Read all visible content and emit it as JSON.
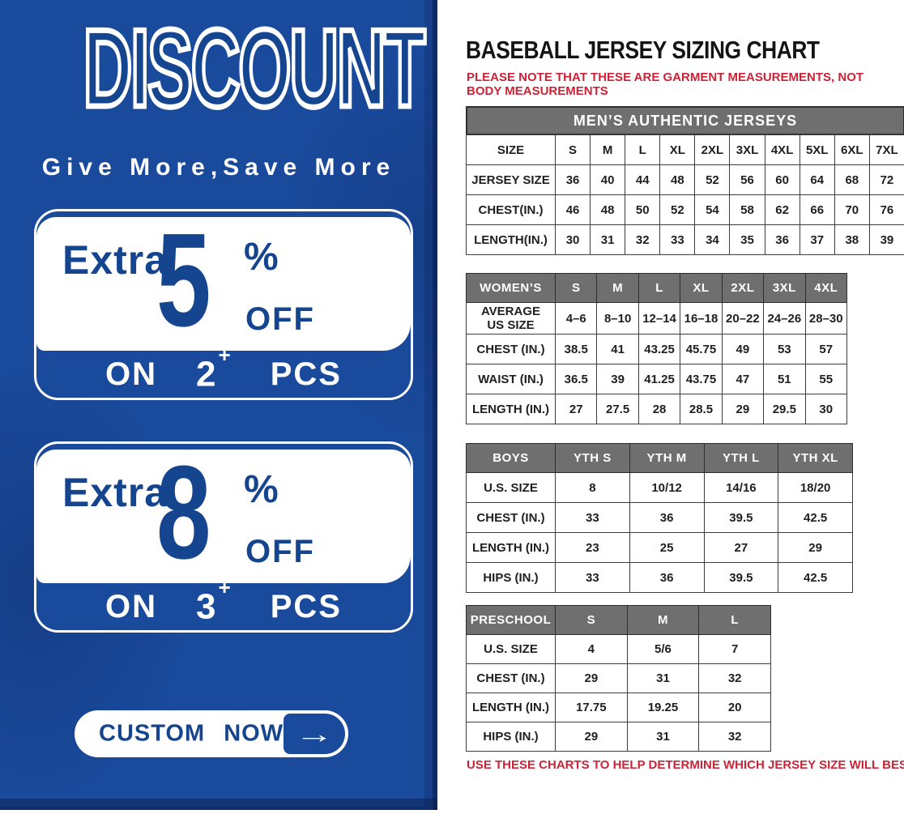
{
  "colors": {
    "panel_blue": "#1a4a9c",
    "text_blue": "#16458f",
    "header_gray": "#6f6f6f",
    "note_red": "#cc2336",
    "border_dark": "#3d3d3d"
  },
  "discount": {
    "title": "DISCOUNT",
    "subtitle": "Give More,Save More",
    "offers": [
      {
        "extra": "Extra",
        "percent": "5",
        "percent_sign": "%",
        "off_label": "OFF",
        "on_label": "ON",
        "quantity": "2",
        "plus_sign": "+",
        "pcs_label": "PCS"
      },
      {
        "extra": "Extra",
        "percent": "8",
        "percent_sign": "%",
        "off_label": "OFF",
        "on_label": "ON",
        "quantity": "3",
        "plus_sign": "+",
        "pcs_label": "PCS"
      }
    ],
    "cta": {
      "label": "CUSTOM NOW",
      "arrow": "→"
    }
  },
  "sizing": {
    "title": "BASEBALL JERSEY SIZING CHART",
    "note_top": "PLEASE NOTE THAT THESE ARE GARMENT MEASUREMENTS, NOT BODY MEASUREMENTS",
    "note_bottom": "USE THESE CHARTS TO HELP DETERMINE WHICH JERSEY SIZE WILL BEST FIT YOU.",
    "tables": [
      {
        "id": "mens",
        "banner": "MEN’S AUTHENTIC JERSEYS",
        "header": [
          "SIZE",
          "S",
          "M",
          "L",
          "XL",
          "2XL",
          "3XL",
          "4XL",
          "5XL",
          "6XL",
          "7XL"
        ],
        "rows": [
          [
            "JERSEY SIZE",
            "36",
            "40",
            "44",
            "48",
            "52",
            "56",
            "60",
            "64",
            "68",
            "72"
          ],
          [
            "CHEST(IN.)",
            "46",
            "48",
            "50",
            "52",
            "54",
            "58",
            "62",
            "66",
            "70",
            "76"
          ],
          [
            "LENGTH(IN.)",
            "30",
            "31",
            "32",
            "33",
            "34",
            "35",
            "36",
            "37",
            "38",
            "39"
          ]
        ]
      },
      {
        "id": "womens",
        "banner": "",
        "header": [
          "WOMEN’S",
          "S",
          "M",
          "L",
          "XL",
          "2XL",
          "3XL",
          "4XL"
        ],
        "rows": [
          [
            "AVERAGE\nUS SIZE",
            "4–6",
            "8–10",
            "12–14",
            "16–18",
            "20–22",
            "24–26",
            "28–30"
          ],
          [
            "CHEST (IN.)",
            "38.5",
            "41",
            "43.25",
            "45.75",
            "49",
            "53",
            "57"
          ],
          [
            "WAIST (IN.)",
            "36.5",
            "39",
            "41.25",
            "43.75",
            "47",
            "51",
            "55"
          ],
          [
            "LENGTH (IN.)",
            "27",
            "27.5",
            "28",
            "28.5",
            "29",
            "29.5",
            "30"
          ]
        ]
      },
      {
        "id": "boys",
        "banner": "",
        "header": [
          "BOYS",
          "YTH S",
          "YTH M",
          "YTH L",
          "YTH XL"
        ],
        "rows": [
          [
            "U.S. SIZE",
            "8",
            "10/12",
            "14/16",
            "18/20"
          ],
          [
            "CHEST (IN.)",
            "33",
            "36",
            "39.5",
            "42.5"
          ],
          [
            "LENGTH (IN.)",
            "23",
            "25",
            "27",
            "29"
          ],
          [
            "HIPS (IN.)",
            "33",
            "36",
            "39.5",
            "42.5"
          ]
        ]
      },
      {
        "id": "preschool",
        "banner": "",
        "header": [
          "PRESCHOOL",
          "S",
          "M",
          "L"
        ],
        "rows": [
          [
            "U.S. SIZE",
            "4",
            "5/6",
            "7"
          ],
          [
            "CHEST (IN.)",
            "29",
            "31",
            "32"
          ],
          [
            "LENGTH (IN.)",
            "17.75",
            "19.25",
            "20"
          ],
          [
            "HIPS (IN.)",
            "29",
            "31",
            "32"
          ]
        ]
      }
    ]
  }
}
